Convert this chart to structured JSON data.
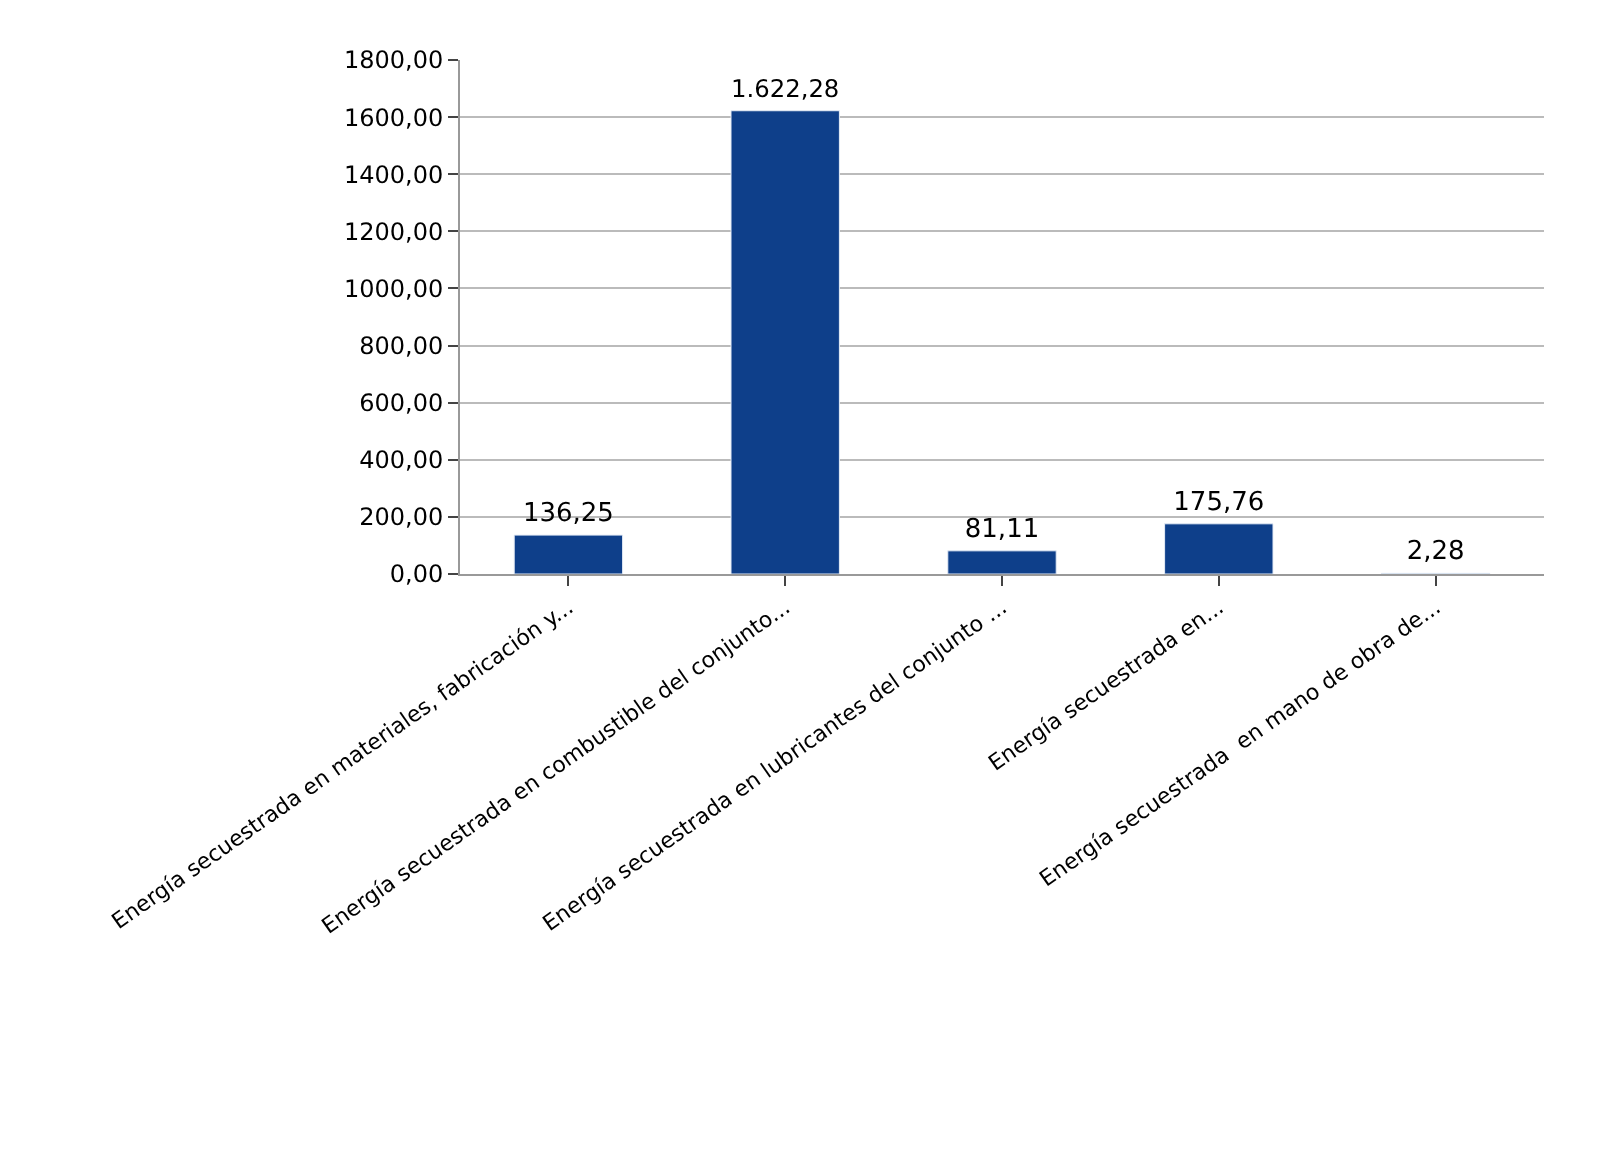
{
  "chart_data": {
    "type": "bar",
    "categories": [
      "Energía secuestrada en materiales, fabricación y...",
      "Energía secuestrada en combustible del conjunto...",
      "Energía secuestrada en lubricantes del conjunto ...",
      "Energía secuestrada en...",
      "Energía secuestrada  en mano de obra de..."
    ],
    "values": [
      136.25,
      1622.28,
      81.11,
      175.76,
      2.28
    ],
    "value_labels": [
      "136,25",
      "1.622,28",
      "81,11",
      "175,76",
      "2,28"
    ],
    "color": "#0e3f8a",
    "ylim": [
      0,
      1800
    ],
    "yticks": [
      {
        "value": 0,
        "label": "0,00"
      },
      {
        "value": 200,
        "label": "200,00"
      },
      {
        "value": 400,
        "label": "400,00"
      },
      {
        "value": 600,
        "label": "600,00"
      },
      {
        "value": 800,
        "label": "800,00"
      },
      {
        "value": 1000,
        "label": "1000,00"
      },
      {
        "value": 1200,
        "label": "1200,00"
      },
      {
        "value": 1400,
        "label": "1400,00"
      },
      {
        "value": 1600,
        "label": "1600,00"
      },
      {
        "value": 1800,
        "label": "1800,00"
      }
    ],
    "grid": "y",
    "legend": false
  }
}
